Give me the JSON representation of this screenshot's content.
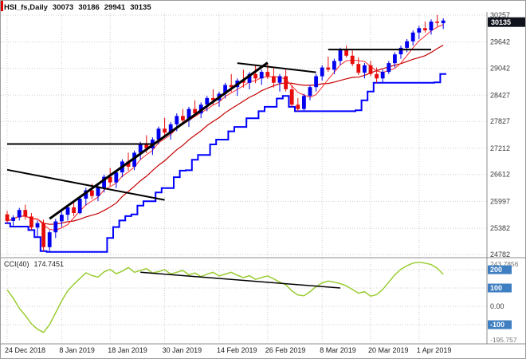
{
  "header": {
    "symbol": "HSI_fs,Daily",
    "open": "30073",
    "high": "30186",
    "low": "29941",
    "close": "30135"
  },
  "colors": {
    "background": "#FFFFFF",
    "grid": "#CDCDCD",
    "bull": "#0000EE",
    "bear": "#E60C0C",
    "ma_fast": "#FF2A2A",
    "ma_slow": "#C40000",
    "step_line": "#0000FF",
    "trend_line": "#000000",
    "cci_line": "#9ACD32",
    "price_tag_bg": "#10131C",
    "price_tag_text": "#FFFFFF",
    "level_tag_bg": "#3F7FC1",
    "level_tag_text": "#FFFFFF",
    "axis_text": "#3A3A3A",
    "date_text": "#1C1C1C",
    "scale_minor_text": "#777777",
    "separator": "#8C8C8C",
    "window_accent": "#E00000"
  },
  "price_axis": {
    "labels": [
      "30257",
      "29642",
      "29042",
      "28427",
      "27827",
      "27212",
      "26612",
      "25997",
      "25382",
      "24782"
    ],
    "values": [
      30257,
      29642,
      29042,
      28427,
      27827,
      27212,
      26612,
      25997,
      25382,
      24782
    ],
    "max": 30257,
    "min": 24782,
    "current": "30135",
    "current_value": 30135
  },
  "time_axis": {
    "labels": [
      "24 Dec 2018",
      "8 Jan 2019",
      "18 Jan 2019",
      "30 Jan 2019",
      "14 Feb 2019",
      "26 Feb 2019",
      "8 Mar 2019",
      "20 Mar 2019",
      "1 Apr 2019"
    ],
    "indices": [
      0,
      9,
      17,
      26,
      35,
      43,
      52,
      60,
      68
    ]
  },
  "chart_data": {
    "type": "candlestick",
    "title": "HSI_fs,Daily",
    "ohlc_current": {
      "open": 30073,
      "high": 30186,
      "low": 29941,
      "close": 30135
    },
    "candles": [
      [
        25700,
        25780,
        25500,
        25550
      ],
      [
        25550,
        25680,
        25420,
        25630
      ],
      [
        25630,
        25850,
        25560,
        25800
      ],
      [
        25800,
        25920,
        25580,
        25650
      ],
      [
        25650,
        25730,
        25340,
        25400
      ],
      [
        25400,
        25560,
        25180,
        25500
      ],
      [
        25500,
        25580,
        24860,
        24950
      ],
      [
        24950,
        25340,
        24840,
        25290
      ],
      [
        25290,
        25600,
        25160,
        25540
      ],
      [
        25540,
        25760,
        25410,
        25690
      ],
      [
        25690,
        25910,
        25560,
        25860
      ],
      [
        25860,
        26010,
        25660,
        25730
      ],
      [
        25730,
        26110,
        25700,
        26060
      ],
      [
        26060,
        26310,
        25900,
        26250
      ],
      [
        26250,
        26400,
        26050,
        26120
      ],
      [
        26120,
        26360,
        26000,
        26310
      ],
      [
        26310,
        26610,
        26200,
        26560
      ],
      [
        26560,
        26760,
        26350,
        26430
      ],
      [
        26430,
        26710,
        26300,
        26660
      ],
      [
        26660,
        26960,
        26550,
        26910
      ],
      [
        26910,
        27110,
        26700,
        26790
      ],
      [
        26790,
        27160,
        26710,
        27110
      ],
      [
        27110,
        27360,
        26950,
        27300
      ],
      [
        27300,
        27510,
        27100,
        27210
      ],
      [
        27210,
        27460,
        27060,
        27410
      ],
      [
        27410,
        27710,
        27300,
        27660
      ],
      [
        27660,
        27910,
        27500,
        27570
      ],
      [
        27570,
        27810,
        27410,
        27760
      ],
      [
        27760,
        28010,
        27600,
        27950
      ],
      [
        27950,
        28110,
        27750,
        27850
      ],
      [
        27850,
        28160,
        27700,
        28110
      ],
      [
        28110,
        28310,
        27950,
        28010
      ],
      [
        28010,
        28260,
        27900,
        28210
      ],
      [
        28210,
        28410,
        28060,
        28360
      ],
      [
        28360,
        28560,
        28200,
        28310
      ],
      [
        28310,
        28510,
        28160,
        28460
      ],
      [
        28460,
        28710,
        28350,
        28660
      ],
      [
        28660,
        28910,
        28500,
        28610
      ],
      [
        28610,
        28810,
        28410,
        28760
      ],
      [
        28760,
        29010,
        28600,
        28710
      ],
      [
        28710,
        28960,
        28560,
        28910
      ],
      [
        28910,
        29110,
        28700,
        28810
      ],
      [
        28810,
        29010,
        28660,
        28960
      ],
      [
        28960,
        29160,
        28800,
        28860
      ],
      [
        28860,
        29060,
        28600,
        28710
      ],
      [
        28710,
        28910,
        28510,
        28860
      ],
      [
        28860,
        29010,
        28510,
        28560
      ],
      [
        28560,
        28660,
        28160,
        28210
      ],
      [
        28210,
        28360,
        28060,
        28110
      ],
      [
        28110,
        28460,
        28080,
        28410
      ],
      [
        28410,
        28660,
        28310,
        28610
      ],
      [
        28610,
        28910,
        28510,
        28860
      ],
      [
        28860,
        29110,
        28760,
        29060
      ],
      [
        29060,
        29310,
        28960,
        29010
      ],
      [
        29010,
        29260,
        28910,
        29210
      ],
      [
        29210,
        29510,
        29110,
        29460
      ],
      [
        29460,
        29560,
        29290,
        29330
      ],
      [
        29330,
        29460,
        29090,
        29140
      ],
      [
        29140,
        29290,
        28890,
        28940
      ],
      [
        28940,
        29160,
        28810,
        29110
      ],
      [
        29110,
        29210,
        28860,
        28910
      ],
      [
        28910,
        29060,
        28710,
        28810
      ],
      [
        28810,
        29010,
        28720,
        28960
      ],
      [
        28960,
        29210,
        28910,
        29160
      ],
      [
        29160,
        29410,
        29060,
        29360
      ],
      [
        29360,
        29560,
        29260,
        29510
      ],
      [
        29510,
        29710,
        29410,
        29660
      ],
      [
        29660,
        29910,
        29560,
        29860
      ],
      [
        29860,
        30010,
        29710,
        29960
      ],
      [
        29960,
        30110,
        29860,
        29910
      ],
      [
        29910,
        30160,
        29810,
        30110
      ],
      [
        30110,
        30260,
        30000,
        30080
      ],
      [
        30073,
        30186,
        29941,
        30135
      ]
    ],
    "overlays": {
      "ma_fast_period": 5,
      "ma_slow_period": 13,
      "step_low_window": 10
    },
    "trendlines": [
      {
        "i1": 0,
        "p1": 27310,
        "i2": 24,
        "p2": 27310,
        "width": 2
      },
      {
        "i1": 0,
        "p1": 26720,
        "i2": 26,
        "p2": 26030,
        "width": 2
      },
      {
        "i1": 7,
        "p1": 25600,
        "i2": 43,
        "p2": 29170,
        "width": 3
      },
      {
        "i1": 38,
        "p1": 29160,
        "i2": 51,
        "p2": 28950,
        "width": 2
      },
      {
        "i1": 53,
        "p1": 29470,
        "i2": 70,
        "p2": 29470,
        "width": 2
      }
    ],
    "indicator": {
      "name": "CCI(40)",
      "value_text": "174.7451",
      "scale_max": 243.7856,
      "scale_min": -195.757,
      "levels": [
        200,
        100,
        0,
        -100
      ],
      "values": [
        90,
        45,
        -10,
        -50,
        -95,
        -125,
        -142,
        -100,
        -35,
        30,
        85,
        120,
        152,
        183,
        168,
        160,
        188,
        202,
        178,
        192,
        212,
        186,
        196,
        206,
        182,
        190,
        200,
        176,
        186,
        196,
        172,
        182,
        162,
        176,
        186,
        166,
        176,
        186,
        170,
        157,
        167,
        147,
        157,
        166,
        150,
        132,
        118,
        84,
        62,
        58,
        80,
        108,
        128,
        138,
        132,
        124,
        112,
        92,
        72,
        80,
        56,
        64,
        92,
        132,
        172,
        202,
        222,
        236,
        241,
        236,
        228,
        208,
        174.7451
      ],
      "axis_tags": [
        {
          "text": "243.7856",
          "value": 243.7856,
          "style": "plain-minor"
        },
        {
          "text": "200",
          "value": 200,
          "style": "blue"
        },
        {
          "text": "100",
          "value": 100,
          "style": "blue"
        },
        {
          "text": "0.00",
          "value": 0,
          "style": "plain"
        },
        {
          "text": "-100",
          "value": -100,
          "style": "blue"
        },
        {
          "text": "-195.757",
          "value": -195.757,
          "style": "plain-minor"
        }
      ],
      "trendline": {
        "i1": 22,
        "v1": 186,
        "i2": 55,
        "v2": 100
      }
    }
  }
}
